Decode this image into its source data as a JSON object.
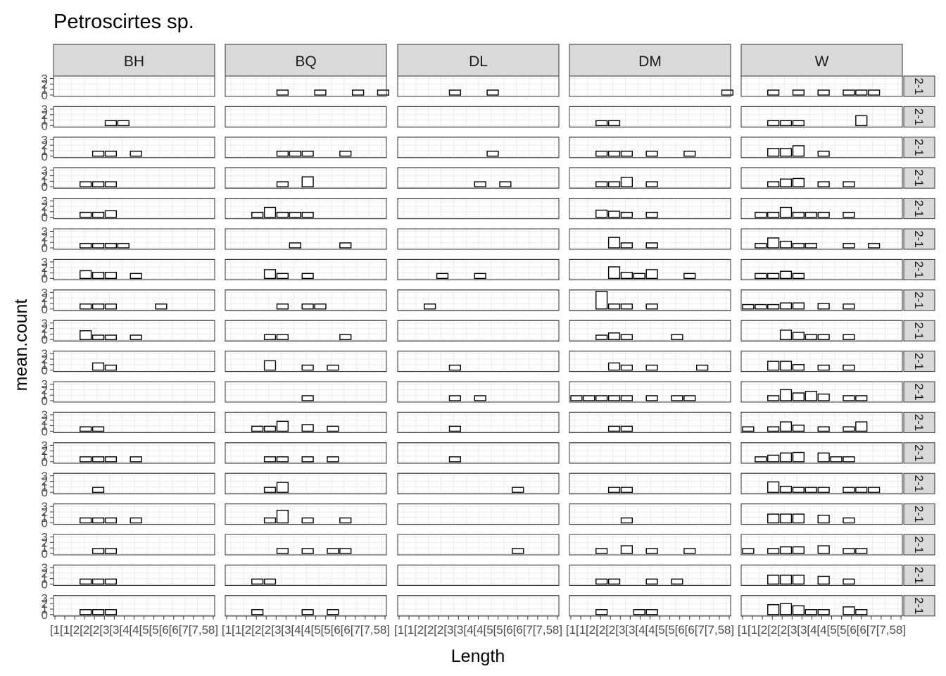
{
  "chart_data": {
    "type": "bar",
    "title": "Petroscirtes sp.",
    "xlabel": "Length",
    "ylabel": "mean.count",
    "columns": [
      "BH",
      "BQ",
      "DL",
      "DM",
      "W"
    ],
    "row_strip_label": "2-1",
    "x_tick_labels": [
      "[1",
      "[1",
      "[2",
      "[2",
      "[2",
      "[3",
      "[3",
      "[4",
      "[4",
      "[5",
      "[5",
      "[6",
      "[6",
      "[7",
      "[7",
      ",5",
      "8]"
    ],
    "y_tick_labels": [
      "3",
      "2",
      "1",
      "0"
    ],
    "ylim": [
      0,
      3.2
    ],
    "bins": 13,
    "grid": true,
    "rows": [
      [
        [],
        [
          4,
          0.9,
          7,
          0.9,
          10,
          0.9,
          12,
          0.9
        ],
        [
          4,
          0.9,
          7,
          0.9
        ],
        [
          12,
          0.9
        ],
        [
          2,
          0.9,
          4,
          0.9,
          6,
          0.9,
          8,
          0.9,
          9,
          0.9,
          10,
          0.9
        ]
      ],
      [
        [
          4,
          0.9,
          5,
          0.9
        ],
        [],
        [],
        [
          2,
          0.9,
          3,
          0.9
        ],
        [
          2,
          0.9,
          3,
          0.9,
          4,
          0.9,
          9,
          1.8
        ]
      ],
      [
        [
          3,
          0.9,
          4,
          0.9,
          6,
          0.9
        ],
        [
          4,
          0.9,
          5,
          0.9,
          6,
          0.9,
          9,
          0.9
        ],
        [
          7,
          0.9
        ],
        [
          2,
          0.9,
          3,
          0.9,
          4,
          0.9,
          6,
          0.9,
          9,
          0.9
        ],
        [
          2,
          1.4,
          3,
          1.4,
          4,
          1.9,
          6,
          0.9
        ]
      ],
      [
        [
          2,
          0.9,
          3,
          0.9,
          4,
          0.9
        ],
        [
          4,
          0.9,
          6,
          1.8
        ],
        [
          6,
          0.9,
          8,
          0.9
        ],
        [
          2,
          0.9,
          3,
          0.9,
          4,
          1.7,
          6,
          0.9
        ],
        [
          2,
          0.9,
          3,
          1.4,
          4,
          1.5,
          6,
          0.9,
          8,
          0.9
        ]
      ],
      [
        [
          2,
          0.9,
          3,
          0.9,
          4,
          1.2
        ],
        [
          2,
          0.9,
          3,
          1.8,
          4,
          0.9,
          5,
          0.9,
          6,
          0.9
        ],
        [],
        [
          2,
          1.3,
          3,
          1.1,
          4,
          0.9,
          6,
          0.9
        ],
        [
          1,
          0.9,
          2,
          0.9,
          3,
          1.8,
          4,
          0.9,
          5,
          0.9,
          6,
          0.9,
          8,
          0.9
        ]
      ],
      [
        [
          2,
          0.8,
          3,
          0.8,
          4,
          0.8,
          5,
          0.8
        ],
        [
          5,
          0.9,
          9,
          0.9
        ],
        [],
        [
          3,
          1.9,
          4,
          0.9,
          6,
          0.9
        ],
        [
          1,
          0.8,
          2,
          1.8,
          3,
          1.2,
          4,
          0.8,
          5,
          0.8,
          8,
          0.8,
          10,
          0.8
        ]
      ],
      [
        [
          2,
          1.4,
          3,
          1.1,
          4,
          1.1,
          6,
          0.9
        ],
        [
          3,
          1.6,
          4,
          0.9,
          6,
          0.9
        ],
        [
          3,
          0.9,
          6,
          0.9
        ],
        [
          3,
          2.1,
          4,
          1.1,
          5,
          0.9,
          6,
          1.6,
          9,
          0.9
        ],
        [
          1,
          0.9,
          2,
          0.9,
          3,
          1.3,
          4,
          0.9
        ]
      ],
      [
        [
          2,
          0.9,
          3,
          0.9,
          4,
          0.9,
          8,
          0.9
        ],
        [
          4,
          0.9,
          6,
          0.9,
          7,
          0.9
        ],
        [
          2,
          0.9
        ],
        [
          2,
          3.2,
          3,
          0.9,
          4,
          0.9,
          6,
          0.9
        ],
        [
          0,
          0.8,
          1,
          0.8,
          2,
          0.8,
          3,
          1.1,
          4,
          1.1,
          6,
          1.0,
          8,
          0.9
        ]
      ],
      [
        [
          2,
          1.6,
          3,
          0.8,
          4,
          0.8,
          6,
          0.8
        ],
        [
          3,
          0.9,
          4,
          0.9,
          9,
          0.9
        ],
        [],
        [
          2,
          0.8,
          3,
          1.2,
          4,
          0.9,
          8,
          0.9
        ],
        [
          3,
          1.7,
          4,
          1.3,
          5,
          0.9,
          6,
          0.9,
          8,
          0.9
        ]
      ],
      [
        [
          3,
          1.3,
          4,
          0.9
        ],
        [
          3,
          1.7,
          6,
          0.9,
          8,
          0.9
        ],
        [
          4,
          0.9
        ],
        [
          3,
          1.3,
          4,
          0.9,
          6,
          0.9,
          10,
          0.9
        ],
        [
          2,
          1.6,
          3,
          1.6,
          4,
          1.0,
          6,
          0.9,
          8,
          0.9
        ]
      ],
      [
        [],
        [
          6,
          0.9
        ],
        [
          4,
          0.9,
          6,
          0.9
        ],
        [
          0,
          0.9,
          1,
          0.9,
          2,
          0.9,
          3,
          0.9,
          4,
          0.9,
          6,
          0.9,
          8,
          0.9,
          9,
          0.9
        ],
        [
          2,
          0.9,
          3,
          2.0,
          4,
          1.4,
          5,
          1.7,
          6,
          1.2,
          8,
          0.9,
          9,
          0.9
        ]
      ],
      [
        [
          2,
          0.8,
          3,
          0.8
        ],
        [
          2,
          0.9,
          3,
          0.9,
          4,
          1.8,
          6,
          1.2,
          8,
          0.9
        ],
        [
          4,
          0.9
        ],
        [
          3,
          0.9,
          4,
          0.9
        ],
        [
          0,
          0.8,
          2,
          0.8,
          3,
          1.7,
          4,
          1.1,
          6,
          0.8,
          8,
          0.8,
          9,
          1.7
        ]
      ],
      [
        [
          2,
          0.9,
          3,
          0.9,
          4,
          0.9,
          6,
          0.9
        ],
        [
          3,
          0.9,
          4,
          0.9,
          6,
          0.9,
          8,
          0.9
        ],
        [
          4,
          0.9
        ],
        [],
        [
          1,
          0.9,
          2,
          1.2,
          3,
          1.6,
          4,
          1.7,
          6,
          1.6,
          7,
          0.9,
          8,
          0.9
        ]
      ],
      [
        [
          3,
          0.9
        ],
        [
          3,
          0.9,
          4,
          1.8
        ],
        [
          9,
          0.9
        ],
        [
          3,
          0.9,
          4,
          0.9
        ],
        [
          2,
          1.9,
          3,
          1.1,
          4,
          0.9,
          5,
          0.9,
          6,
          0.9,
          8,
          0.9,
          9,
          0.9,
          10,
          0.9
        ]
      ],
      [
        [
          2,
          0.9,
          3,
          0.9,
          4,
          0.9,
          6,
          0.9
        ],
        [
          3,
          0.9,
          4,
          2.3,
          6,
          0.9,
          9,
          0.9
        ],
        [],
        [
          4,
          0.9
        ],
        [
          2,
          1.6,
          3,
          1.6,
          4,
          1.6,
          6,
          1.4,
          8,
          0.9
        ]
      ],
      [
        [
          3,
          0.9,
          4,
          0.9
        ],
        [
          4,
          0.9,
          6,
          0.9,
          8,
          0.9,
          9,
          0.9
        ],
        [
          9,
          0.9
        ],
        [
          2,
          0.9,
          4,
          1.4,
          6,
          0.9,
          9,
          0.9
        ],
        [
          0,
          0.9,
          2,
          0.9,
          3,
          1.2,
          4,
          1.2,
          6,
          1.4,
          8,
          0.9,
          9,
          0.9
        ]
      ],
      [
        [
          2,
          0.9,
          3,
          0.9,
          4,
          0.9
        ],
        [
          2,
          0.9,
          3,
          0.9
        ],
        [],
        [
          2,
          0.9,
          3,
          0.9,
          6,
          0.9,
          8,
          0.9
        ],
        [
          2,
          1.6,
          3,
          1.6,
          4,
          1.6,
          6,
          1.4,
          8,
          0.9
        ]
      ],
      [
        [
          2,
          0.9,
          3,
          0.9,
          4,
          0.9
        ],
        [
          2,
          0.9,
          6,
          0.9,
          8,
          0.9
        ],
        [],
        [
          2,
          0.9,
          5,
          0.9,
          6,
          0.9
        ],
        [
          2,
          1.8,
          3,
          2.0,
          4,
          1.6,
          5,
          0.9,
          6,
          0.9,
          8,
          1.4,
          9,
          0.9
        ]
      ]
    ]
  }
}
